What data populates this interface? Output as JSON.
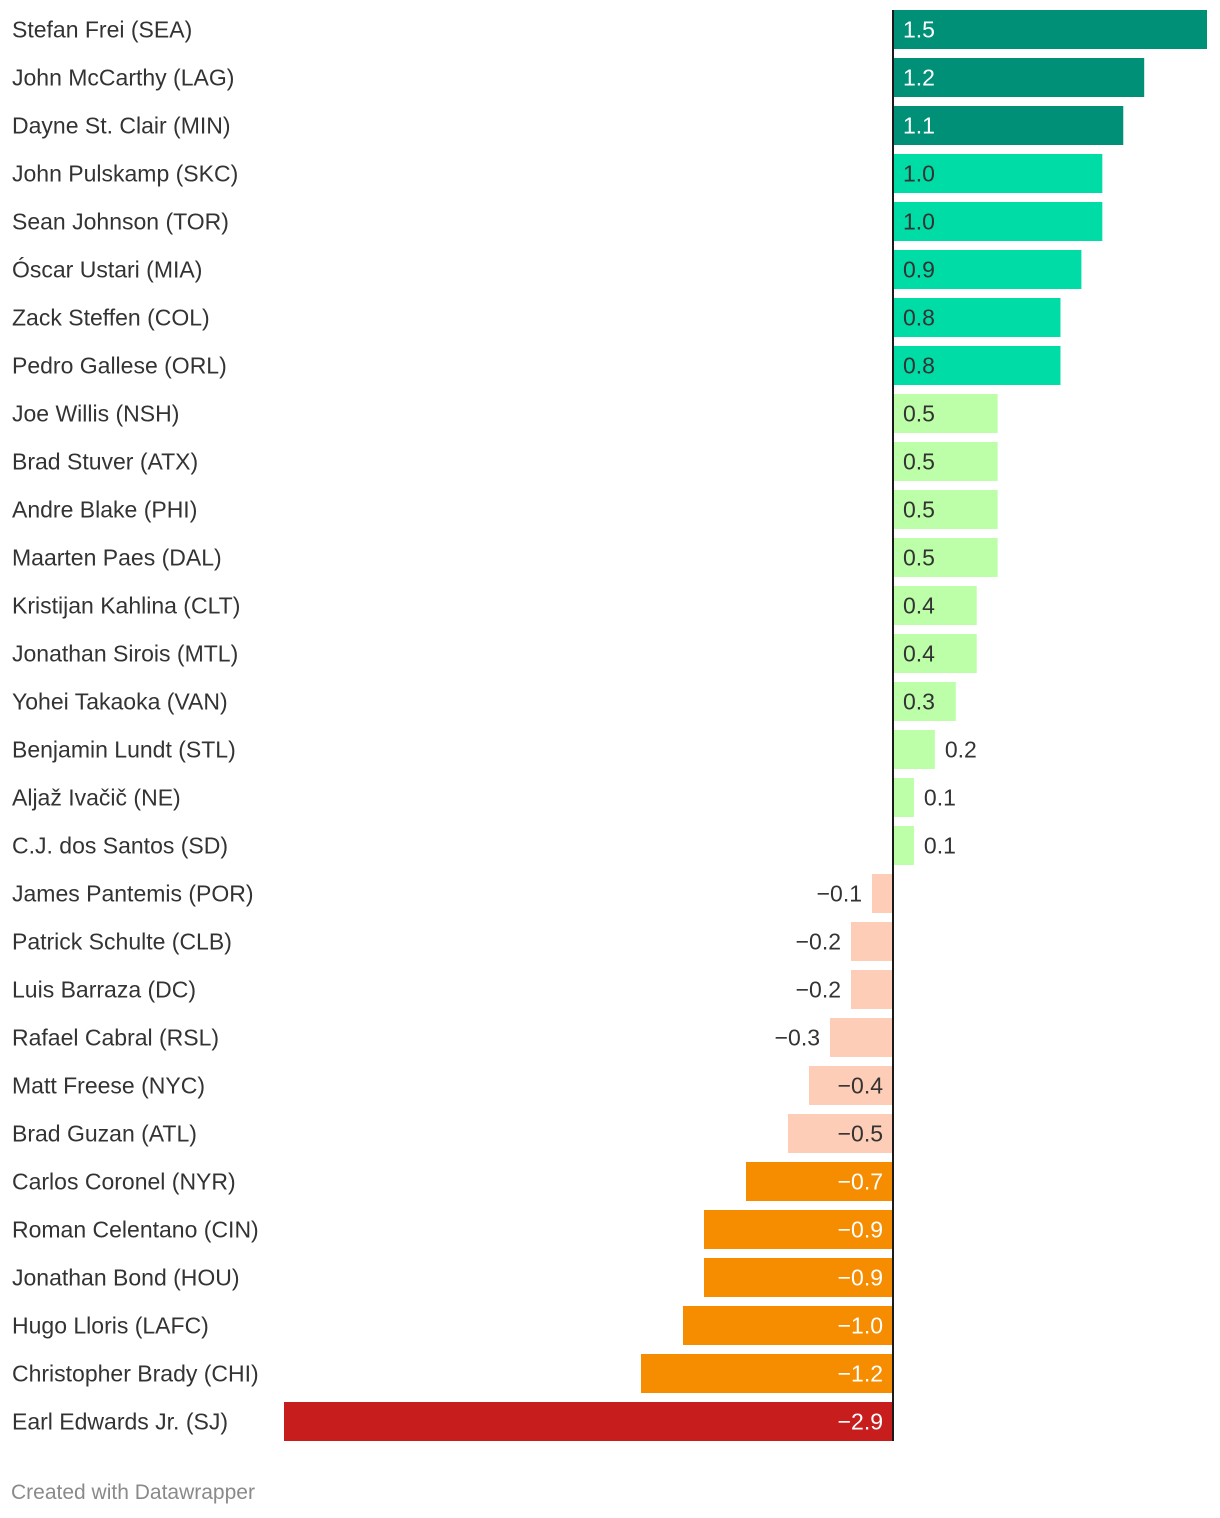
{
  "chart_data": {
    "type": "bar",
    "orientation": "horizontal",
    "title": "",
    "xlabel": "",
    "ylabel": "",
    "grid": false,
    "xlim": [
      -2.9,
      1.5
    ],
    "categories": [
      "Stefan Frei (SEA)",
      "John McCarthy (LAG)",
      "Dayne St. Clair (MIN)",
      "John Pulskamp (SKC)",
      "Sean Johnson (TOR)",
      "Óscar Ustari (MIA)",
      "Zack Steffen (COL)",
      "Pedro Gallese (ORL)",
      "Joe Willis (NSH)",
      "Brad Stuver (ATX)",
      "Andre Blake (PHI)",
      "Maarten Paes (DAL)",
      "Kristijan Kahlina (CLT)",
      "Jonathan Sirois (MTL)",
      "Yohei Takaoka (VAN)",
      "Benjamin Lundt (STL)",
      "Aljaž Ivačič (NE)",
      "C.J. dos Santos (SD)",
      "James Pantemis (POR)",
      "Patrick Schulte (CLB)",
      "Luis Barraza (DC)",
      "Rafael Cabral (RSL)",
      "Matt Freese (NYC)",
      "Brad Guzan (ATL)",
      "Carlos Coronel (NYR)",
      "Roman Celentano (CIN)",
      "Jonathan Bond (HOU)",
      "Hugo Lloris (LAFC)",
      "Christopher Brady (CHI)",
      "Earl Edwards Jr. (SJ)"
    ],
    "values": [
      1.5,
      1.2,
      1.1,
      1.0,
      1.0,
      0.9,
      0.8,
      0.8,
      0.5,
      0.5,
      0.5,
      0.5,
      0.4,
      0.4,
      0.3,
      0.2,
      0.1,
      0.1,
      -0.1,
      -0.2,
      -0.2,
      -0.3,
      -0.4,
      -0.5,
      -0.7,
      -0.9,
      -0.9,
      -1.0,
      -1.2,
      -2.9
    ],
    "value_labels": [
      "1.5",
      "1.2",
      "1.1",
      "1.0",
      "1.0",
      "0.9",
      "0.8",
      "0.8",
      "0.5",
      "0.5",
      "0.5",
      "0.5",
      "0.4",
      "0.4",
      "0.3",
      "0.2",
      "0.1",
      "0.1",
      "−0.1",
      "−0.2",
      "−0.2",
      "−0.3",
      "−0.4",
      "−0.5",
      "−0.7",
      "−0.9",
      "−0.9",
      "−1.0",
      "−1.2",
      "−2.9"
    ],
    "colors": {
      "strong_positive": "#009078",
      "positive": "#00dca6",
      "mild_positive": "#bcffa8",
      "mild_negative": "#fdcdb7",
      "negative": "#f68c00",
      "strong_negative": "#c71e1d",
      "axis": "#1a1a1a",
      "dark_text": "#333333",
      "light_text": "#ffffff"
    }
  },
  "footer": {
    "credit": "Created with Datawrapper"
  }
}
